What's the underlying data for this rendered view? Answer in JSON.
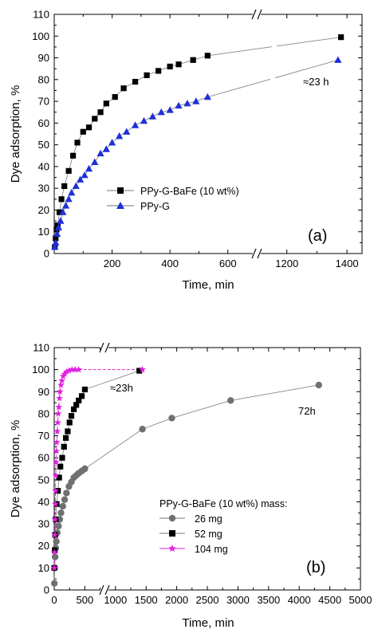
{
  "chart_data": [
    {
      "type": "scatter",
      "panel_label": "(a)",
      "xlabel": "Time, min",
      "ylabel": "Dye adsorption, %",
      "ylim": [
        0,
        110
      ],
      "y_ticks": [
        0,
        10,
        20,
        30,
        40,
        50,
        60,
        70,
        80,
        90,
        100,
        110
      ],
      "x_axis_break": true,
      "x_ticks": [
        "200",
        "400",
        "600",
        "1200",
        "1400"
      ],
      "annotation": "≈23 h",
      "legend_position": "center",
      "series": [
        {
          "name": "PPy-G-BaFe (10 wt%)",
          "marker": "square",
          "color": "#000000",
          "points": [
            [
              2,
              3
            ],
            [
              5,
              7
            ],
            [
              8,
              11
            ],
            [
              12,
              13
            ],
            [
              18,
              19
            ],
            [
              25,
              25
            ],
            [
              35,
              31
            ],
            [
              50,
              38
            ],
            [
              65,
              45
            ],
            [
              80,
              51
            ],
            [
              100,
              56
            ],
            [
              120,
              58
            ],
            [
              140,
              62
            ],
            [
              160,
              65
            ],
            [
              180,
              69
            ],
            [
              210,
              72
            ],
            [
              240,
              76
            ],
            [
              280,
              79
            ],
            [
              320,
              82
            ],
            [
              360,
              84
            ],
            [
              400,
              86
            ],
            [
              430,
              87
            ],
            [
              480,
              89
            ],
            [
              530,
              91
            ],
            [
              1380,
              99.5
            ]
          ]
        },
        {
          "name": "PPy-G",
          "marker": "triangle",
          "color": "#1f2fd8",
          "points": [
            [
              2,
              3
            ],
            [
              5,
              5
            ],
            [
              10,
              9
            ],
            [
              15,
              12
            ],
            [
              22,
              15
            ],
            [
              30,
              19
            ],
            [
              40,
              22
            ],
            [
              50,
              25
            ],
            [
              60,
              28
            ],
            [
              75,
              31
            ],
            [
              90,
              34
            ],
            [
              105,
              36
            ],
            [
              120,
              39
            ],
            [
              140,
              42
            ],
            [
              160,
              46
            ],
            [
              180,
              48
            ],
            [
              200,
              51
            ],
            [
              225,
              54
            ],
            [
              250,
              56
            ],
            [
              280,
              59
            ],
            [
              310,
              61
            ],
            [
              340,
              63
            ],
            [
              370,
              65
            ],
            [
              400,
              66
            ],
            [
              430,
              68
            ],
            [
              460,
              69
            ],
            [
              490,
              70
            ],
            [
              530,
              72
            ],
            [
              1370,
              89
            ]
          ]
        }
      ]
    },
    {
      "type": "scatter",
      "panel_label": "(b)",
      "xlabel": "Time, min",
      "ylabel": "Dye adsorption, %",
      "ylim": [
        0,
        110
      ],
      "y_ticks": [
        0,
        10,
        20,
        30,
        40,
        50,
        60,
        70,
        80,
        90,
        100,
        110
      ],
      "x_axis_break": true,
      "x_ticks": [
        "0",
        "500",
        "1000",
        "1500",
        "2000",
        "2500",
        "3000",
        "3500",
        "4000",
        "4500",
        "5000"
      ],
      "annotations": [
        "≈23h",
        "72h"
      ],
      "legend_title": "PPy-G-BaFe (10 wt%) mass:",
      "legend_position": "lower right",
      "series": [
        {
          "name": "26 mg",
          "marker": "circle",
          "color": "#707070",
          "points": [
            [
              2,
              3
            ],
            [
              8,
              10
            ],
            [
              15,
              15
            ],
            [
              25,
              19
            ],
            [
              35,
              22
            ],
            [
              50,
              26
            ],
            [
              70,
              29
            ],
            [
              90,
              32
            ],
            [
              110,
              35
            ],
            [
              140,
              38
            ],
            [
              170,
              41
            ],
            [
              200,
              44
            ],
            [
              240,
              47
            ],
            [
              280,
              49
            ],
            [
              320,
              51
            ],
            [
              360,
              52
            ],
            [
              400,
              53
            ],
            [
              450,
              54
            ],
            [
              500,
              55
            ],
            [
              1440,
              73
            ],
            [
              1920,
              78
            ],
            [
              2880,
              86
            ],
            [
              4320,
              93
            ]
          ]
        },
        {
          "name": "52 mg",
          "marker": "square",
          "color": "#000000",
          "points": [
            [
              2,
              10
            ],
            [
              8,
              18
            ],
            [
              15,
              25
            ],
            [
              25,
              32
            ],
            [
              40,
              39
            ],
            [
              60,
              45
            ],
            [
              80,
              51
            ],
            [
              100,
              56
            ],
            [
              130,
              60
            ],
            [
              160,
              65
            ],
            [
              190,
              69
            ],
            [
              220,
              72
            ],
            [
              250,
              76
            ],
            [
              280,
              79
            ],
            [
              320,
              82
            ],
            [
              360,
              84
            ],
            [
              400,
              86
            ],
            [
              450,
              88
            ],
            [
              500,
              91
            ],
            [
              1390,
              99.5
            ]
          ]
        },
        {
          "name": "104 mg",
          "marker": "star",
          "color": "#e022e0",
          "points": [
            [
              2,
              10
            ],
            [
              5,
              17
            ],
            [
              8,
              25
            ],
            [
              12,
              32
            ],
            [
              16,
              39
            ],
            [
              20,
              45
            ],
            [
              25,
              52
            ],
            [
              30,
              58
            ],
            [
              36,
              63
            ],
            [
              42,
              67
            ],
            [
              50,
              72
            ],
            [
              58,
              76
            ],
            [
              66,
              80
            ],
            [
              75,
              83
            ],
            [
              85,
              87
            ],
            [
              95,
              90
            ],
            [
              110,
              93
            ],
            [
              125,
              95
            ],
            [
              145,
              97
            ],
            [
              170,
              98
            ],
            [
              200,
              99
            ],
            [
              240,
              99.5
            ],
            [
              290,
              100
            ],
            [
              340,
              100
            ],
            [
              400,
              100
            ],
            [
              1440,
              100
            ]
          ]
        }
      ]
    }
  ]
}
